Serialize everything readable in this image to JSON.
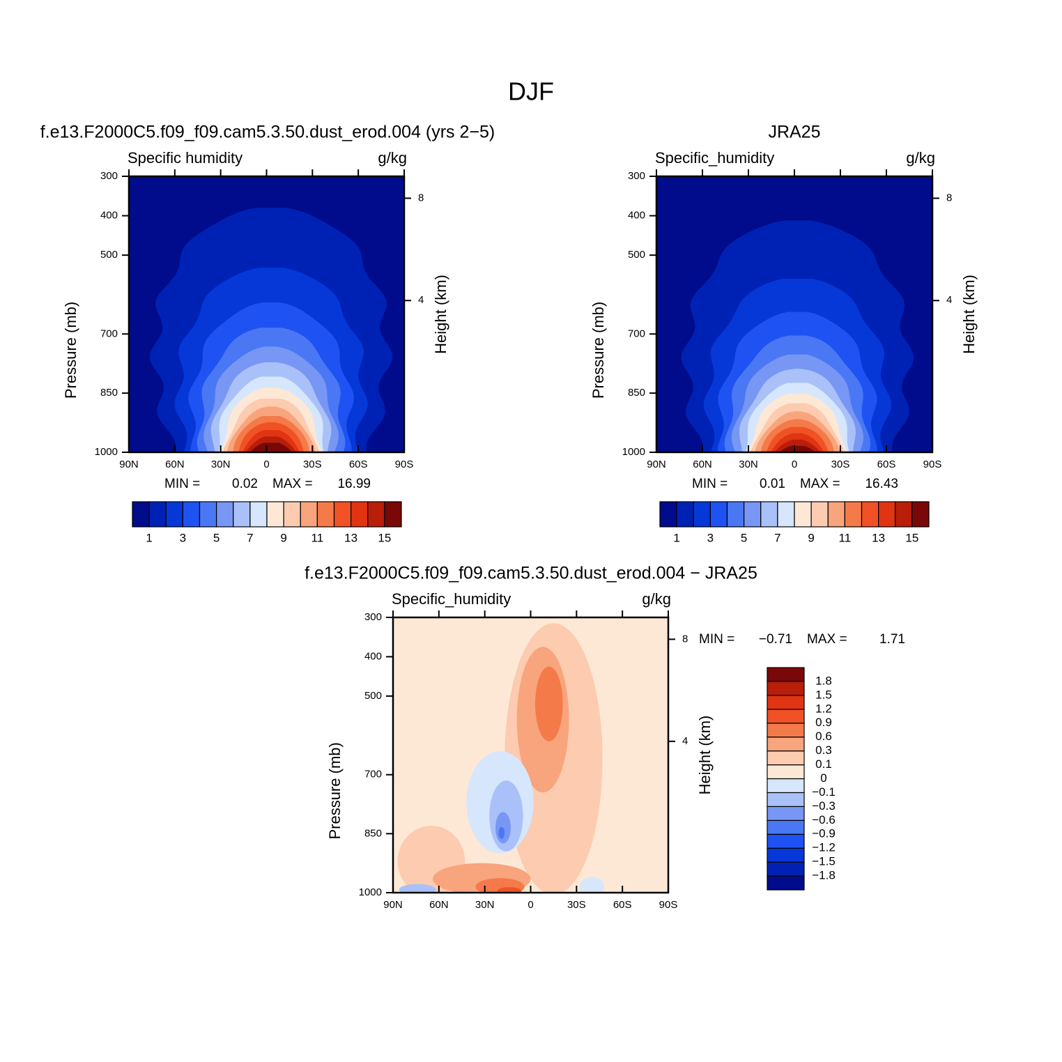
{
  "title": "DJF",
  "chart_data": [
    {
      "type": "contour",
      "title": "f.e13.F2000C5.f09_f09.cam5.3.50.dust_erod.004 (yrs 2−5)",
      "left_string": "Specific humidity",
      "right_string": "g/kg",
      "ylabel": "Pressure (mb)",
      "y2label": "Height (km)",
      "xlim": [
        90,
        -90
      ],
      "xticks": [
        {
          "value": 90,
          "label": "90N"
        },
        {
          "value": 60,
          "label": "60N"
        },
        {
          "value": 30,
          "label": "30N"
        },
        0,
        {
          "value": -30,
          "label": "30S"
        },
        {
          "value": -60,
          "label": "60S"
        },
        {
          "value": -90,
          "label": "90S"
        }
      ],
      "ylim": [
        1000,
        300
      ],
      "yticks": [
        300,
        400,
        500,
        700,
        850,
        1000
      ],
      "y2ticks": [
        8,
        4
      ],
      "min_label": "MIN =",
      "min": 0.02,
      "max_label": "MAX =",
      "max": 16.99,
      "levels": [
        1,
        2,
        3,
        4,
        5,
        6,
        7,
        8,
        9,
        10,
        11,
        12,
        13,
        14,
        15
      ],
      "colors": [
        "#000c8c",
        "#0022b4",
        "#0638d8",
        "#1e52f2",
        "#4a78f4",
        "#7896f4",
        "#a9c1f8",
        "#d6e6fc",
        "#fde8d6",
        "#fccbb0",
        "#f8a47c",
        "#f47a4a",
        "#f05226",
        "#e03412",
        "#b81e0a",
        "#7a0808"
      ]
    },
    {
      "type": "contour",
      "title": "JRA25",
      "left_string": "Specific_humidity",
      "right_string": "g/kg",
      "ylabel": "Pressure (mb)",
      "y2label": "Height (km)",
      "xlim": [
        90,
        -90
      ],
      "xticks": [
        {
          "value": 90,
          "label": "90N"
        },
        {
          "value": 60,
          "label": "60N"
        },
        {
          "value": 30,
          "label": "30N"
        },
        0,
        {
          "value": -30,
          "label": "30S"
        },
        {
          "value": -60,
          "label": "60S"
        },
        {
          "value": -90,
          "label": "90S"
        }
      ],
      "ylim": [
        1000,
        300
      ],
      "yticks": [
        300,
        400,
        500,
        700,
        850,
        1000
      ],
      "y2ticks": [
        8,
        4
      ],
      "min_label": "MIN =",
      "min": 0.01,
      "max_label": "MAX =",
      "max": 16.43,
      "levels": [
        1,
        2,
        3,
        4,
        5,
        6,
        7,
        8,
        9,
        10,
        11,
        12,
        13,
        14,
        15
      ],
      "colors": [
        "#000c8c",
        "#0022b4",
        "#0638d8",
        "#1e52f2",
        "#4a78f4",
        "#7896f4",
        "#a9c1f8",
        "#d6e6fc",
        "#fde8d6",
        "#fccbb0",
        "#f8a47c",
        "#f47a4a",
        "#f05226",
        "#e03412",
        "#b81e0a",
        "#7a0808"
      ]
    },
    {
      "type": "contour-diff",
      "title": "f.e13.F2000C5.f09_f09.cam5.3.50.dust_erod.004 − JRA25",
      "left_string": "Specific_humidity",
      "right_string": "g/kg",
      "ylabel": "Pressure (mb)",
      "y2label": "Height (km)",
      "xlim": [
        90,
        -90
      ],
      "xticks": [
        {
          "value": 90,
          "label": "90N"
        },
        {
          "value": 60,
          "label": "60N"
        },
        {
          "value": 30,
          "label": "30N"
        },
        0,
        {
          "value": -30,
          "label": "30S"
        },
        {
          "value": -60,
          "label": "60S"
        },
        {
          "value": -90,
          "label": "90S"
        }
      ],
      "ylim": [
        1000,
        300
      ],
      "yticks": [
        300,
        400,
        500,
        700,
        850,
        1000
      ],
      "y2ticks": [
        8,
        4
      ],
      "min_label": "MIN =",
      "min": {
        "value": -0.71,
        "label": "−0.71"
      },
      "max_label": "MAX =",
      "max": 1.71,
      "levels": [
        {
          "value": -1.8,
          "label": "−1.8"
        },
        {
          "value": -1.5,
          "label": "−1.5"
        },
        {
          "value": -1.2,
          "label": "−1.2"
        },
        {
          "value": -0.9,
          "label": "−0.9"
        },
        {
          "value": -0.6,
          "label": "−0.6"
        },
        {
          "value": -0.3,
          "label": "−0.3"
        },
        {
          "value": -0.1,
          "label": "−0.1"
        },
        0,
        0.1,
        0.3,
        0.6,
        0.9,
        1.2,
        1.5,
        1.8
      ],
      "colors": [
        "#000c8c",
        "#0022b4",
        "#0638d8",
        "#1e52f2",
        "#4a78f4",
        "#7896f4",
        "#a9c1f8",
        "#d6e6fc",
        "#fde8d6",
        "#fccbb0",
        "#f8a47c",
        "#f47a4a",
        "#f05226",
        "#e03412",
        "#b81e0a",
        "#7a0808"
      ]
    }
  ]
}
